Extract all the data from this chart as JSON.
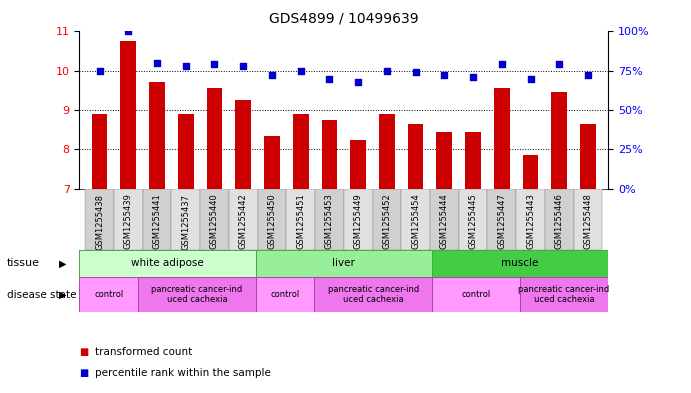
{
  "title": "GDS4899 / 10499639",
  "samples": [
    "GSM1255438",
    "GSM1255439",
    "GSM1255441",
    "GSM1255437",
    "GSM1255440",
    "GSM1255442",
    "GSM1255450",
    "GSM1255451",
    "GSM1255453",
    "GSM1255449",
    "GSM1255452",
    "GSM1255454",
    "GSM1255444",
    "GSM1255445",
    "GSM1255447",
    "GSM1255443",
    "GSM1255446",
    "GSM1255448"
  ],
  "red_values": [
    8.9,
    10.75,
    9.72,
    8.9,
    9.55,
    9.25,
    8.35,
    8.9,
    8.75,
    8.25,
    8.9,
    8.65,
    8.45,
    8.45,
    9.55,
    7.85,
    9.45,
    8.65
  ],
  "blue_values": [
    75,
    100,
    80,
    78,
    79,
    78,
    72,
    75,
    70,
    68,
    75,
    74,
    72,
    71,
    79,
    70,
    79,
    72
  ],
  "ylim_left": [
    7,
    11
  ],
  "ylim_right": [
    0,
    100
  ],
  "yticks_left": [
    7,
    8,
    9,
    10,
    11
  ],
  "yticks_right": [
    0,
    25,
    50,
    75,
    100
  ],
  "tissue_groups": [
    {
      "label": "white adipose",
      "start": 0,
      "end": 6,
      "color": "#ccffcc"
    },
    {
      "label": "liver",
      "start": 6,
      "end": 12,
      "color": "#99ee99"
    },
    {
      "label": "muscle",
      "start": 12,
      "end": 18,
      "color": "#44cc44"
    }
  ],
  "disease_groups": [
    {
      "label": "control",
      "start": 0,
      "end": 2,
      "color": "#ff99ff"
    },
    {
      "label": "pancreatic cancer-ind\nuced cachexia",
      "start": 2,
      "end": 6,
      "color": "#ee77ee"
    },
    {
      "label": "control",
      "start": 6,
      "end": 8,
      "color": "#ff99ff"
    },
    {
      "label": "pancreatic cancer-ind\nuced cachexia",
      "start": 8,
      "end": 12,
      "color": "#ee77ee"
    },
    {
      "label": "control",
      "start": 12,
      "end": 15,
      "color": "#ff99ff"
    },
    {
      "label": "pancreatic cancer-ind\nuced cachexia",
      "start": 15,
      "end": 18,
      "color": "#ee77ee"
    }
  ],
  "bar_color": "#cc0000",
  "dot_color": "#0000cc",
  "bg_color": "#ffffff",
  "bar_bottom": 7,
  "xlabel_bg": "#d8d8d8",
  "tissue_border": "#44aa44",
  "disease_border": "#aa44aa"
}
